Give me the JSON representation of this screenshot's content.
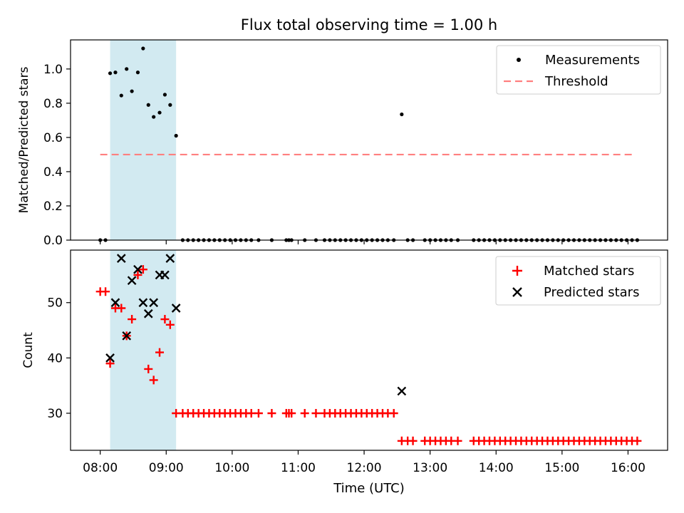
{
  "title": "Flux total observing time = 1.00 h",
  "xlabel": "Time (UTC)",
  "x_tick_labels": [
    "08:00",
    "09:00",
    "10:00",
    "11:00",
    "12:00",
    "13:00",
    "14:00",
    "15:00",
    "16:00"
  ],
  "colors": {
    "band": "#add8e6",
    "threshold": "#ff7f7f",
    "measurement": "#000000",
    "matched": "#ff0000",
    "predicted": "#000000"
  },
  "chart_data": [
    {
      "type": "scatter",
      "ylabel": "Matched/Predicted stars",
      "xlim_hours": [
        7.55,
        16.6
      ],
      "ylim": [
        0,
        1.17
      ],
      "y_tick_labels": [
        "0.0",
        "0.2",
        "0.4",
        "0.6",
        "0.8",
        "1.0"
      ],
      "y_ticks": [
        0,
        0.2,
        0.4,
        0.6,
        0.8,
        1.0
      ],
      "shaded_band_hours": [
        8.15,
        9.15
      ],
      "threshold": {
        "value": 0.5,
        "x_range_hours": [
          8.0,
          16.1
        ]
      },
      "legend": {
        "position": "upper right",
        "entries": [
          "Measurements",
          "Threshold"
        ]
      },
      "measurements": {
        "name": "Measurements",
        "x_hours": [
          8.0,
          8.08,
          8.15,
          8.23,
          8.32,
          8.4,
          8.48,
          8.57,
          8.65,
          8.73,
          8.81,
          8.9,
          8.98,
          9.06,
          9.15,
          9.25,
          9.33,
          9.41,
          9.49,
          9.57,
          9.65,
          9.73,
          9.81,
          9.89,
          9.97,
          10.05,
          10.13,
          10.21,
          10.29,
          10.4,
          10.6,
          10.82,
          10.86,
          10.9,
          11.1,
          11.27,
          11.4,
          11.48,
          11.56,
          11.64,
          11.72,
          11.8,
          11.88,
          11.96,
          12.04,
          12.12,
          12.2,
          12.28,
          12.36,
          12.45,
          12.57,
          12.66,
          12.74,
          12.92,
          13.0,
          13.08,
          13.16,
          13.24,
          13.32,
          13.42,
          13.66,
          13.74,
          13.82,
          13.9,
          13.98,
          14.06,
          14.14,
          14.22,
          14.3,
          14.38,
          14.46,
          14.54,
          14.62,
          14.7,
          14.78,
          14.86,
          14.94,
          15.02,
          15.1,
          15.18,
          15.26,
          15.34,
          15.42,
          15.5,
          15.58,
          15.66,
          15.74,
          15.82,
          15.9,
          15.98,
          16.06,
          16.14
        ],
        "y": [
          0,
          0,
          0.975,
          0.98,
          0.845,
          1.0,
          0.87,
          0.98,
          1.12,
          0.79,
          0.72,
          0.745,
          0.85,
          0.79,
          0.61,
          0,
          0,
          0,
          0,
          0,
          0,
          0,
          0,
          0,
          0,
          0,
          0,
          0,
          0,
          0,
          0,
          0,
          0,
          0,
          0,
          0,
          0,
          0,
          0,
          0,
          0,
          0,
          0,
          0,
          0,
          0,
          0,
          0,
          0,
          0,
          0.735,
          0,
          0,
          0,
          0,
          0,
          0,
          0,
          0,
          0,
          0,
          0,
          0,
          0,
          0,
          0,
          0,
          0,
          0,
          0,
          0,
          0,
          0,
          0,
          0,
          0,
          0,
          0,
          0,
          0,
          0,
          0,
          0,
          0,
          0,
          0,
          0,
          0,
          0,
          0,
          0,
          0
        ]
      }
    },
    {
      "type": "scatter",
      "ylabel": "Count",
      "xlim_hours": [
        7.55,
        16.6
      ],
      "ylim": [
        23.3,
        59.5
      ],
      "y_tick_labels": [
        "30",
        "40",
        "50"
      ],
      "y_ticks": [
        30,
        40,
        50
      ],
      "shaded_band_hours": [
        8.15,
        9.15
      ],
      "legend": {
        "position": "upper right",
        "entries": [
          "Matched stars",
          "Predicted stars"
        ]
      },
      "series": [
        {
          "name": "Matched stars",
          "marker": "+",
          "x_hours": [
            8.0,
            8.08,
            8.15,
            8.23,
            8.32,
            8.4,
            8.48,
            8.57,
            8.65,
            8.73,
            8.81,
            8.9,
            8.98,
            9.06,
            9.15,
            9.25,
            9.33,
            9.41,
            9.49,
            9.57,
            9.65,
            9.73,
            9.81,
            9.89,
            9.97,
            10.05,
            10.13,
            10.21,
            10.29,
            10.4,
            10.6,
            10.82,
            10.86,
            10.9,
            11.1,
            11.27,
            11.4,
            11.48,
            11.56,
            11.64,
            11.72,
            11.8,
            11.88,
            11.96,
            12.04,
            12.12,
            12.2,
            12.28,
            12.36,
            12.45,
            12.57,
            12.66,
            12.74,
            12.92,
            13.0,
            13.08,
            13.16,
            13.24,
            13.32,
            13.42,
            13.66,
            13.74,
            13.82,
            13.9,
            13.98,
            14.06,
            14.14,
            14.22,
            14.3,
            14.38,
            14.46,
            14.54,
            14.62,
            14.7,
            14.78,
            14.86,
            14.94,
            15.02,
            15.1,
            15.18,
            15.26,
            15.34,
            15.42,
            15.5,
            15.58,
            15.66,
            15.74,
            15.82,
            15.9,
            15.98,
            16.06,
            16.14
          ],
          "y": [
            52,
            52,
            39,
            49,
            49,
            44,
            47,
            55,
            56,
            38,
            36,
            41,
            47,
            46,
            30,
            30,
            30,
            30,
            30,
            30,
            30,
            30,
            30,
            30,
            30,
            30,
            30,
            30,
            30,
            30,
            30,
            30,
            30,
            30,
            30,
            30,
            30,
            30,
            30,
            30,
            30,
            30,
            30,
            30,
            30,
            30,
            30,
            30,
            30,
            30,
            25,
            25,
            25,
            25,
            25,
            25,
            25,
            25,
            25,
            25,
            25,
            25,
            25,
            25,
            25,
            25,
            25,
            25,
            25,
            25,
            25,
            25,
            25,
            25,
            25,
            25,
            25,
            25,
            25,
            25,
            25,
            25,
            25,
            25,
            25,
            25,
            25,
            25,
            25,
            25,
            25,
            25
          ]
        },
        {
          "name": "Predicted stars",
          "marker": "x",
          "x_hours": [
            8.15,
            8.23,
            8.32,
            8.4,
            8.48,
            8.57,
            8.65,
            8.73,
            8.81,
            8.9,
            8.98,
            9.06,
            9.15,
            12.57
          ],
          "y": [
            40,
            50,
            58,
            44,
            54,
            56,
            50,
            48,
            50,
            55,
            55,
            58,
            49,
            34
          ]
        }
      ]
    }
  ]
}
